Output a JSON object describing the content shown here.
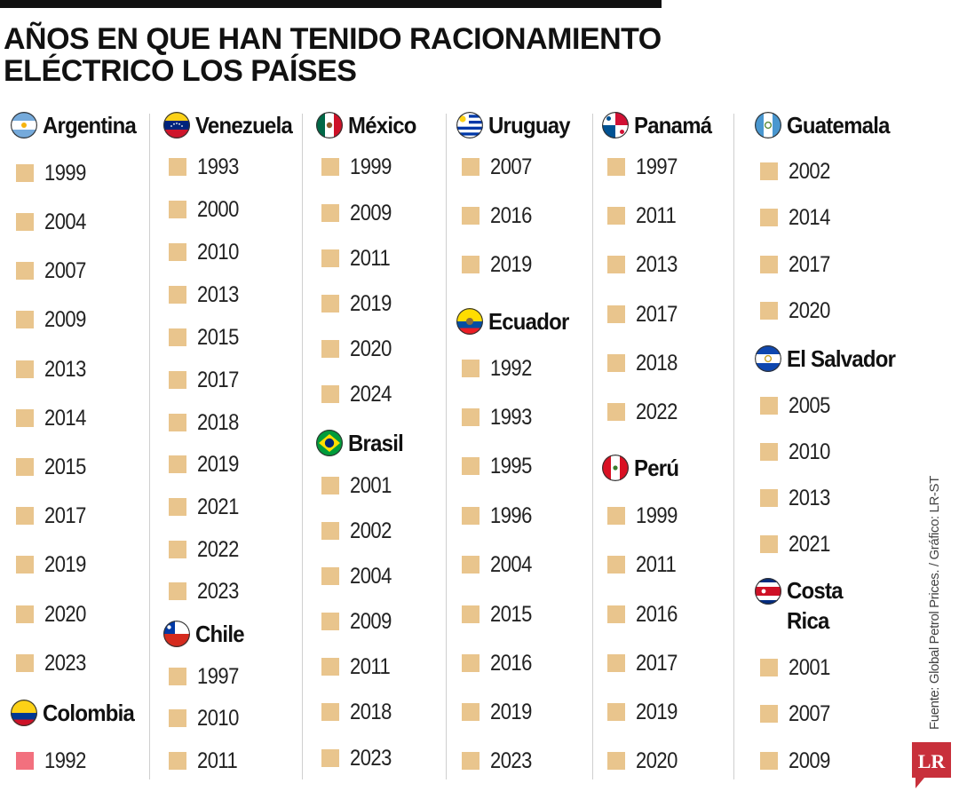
{
  "title": "AÑOS EN QUE HAN TENIDO RACIONAMIENTO ELÉCTRICO LOS PAÍSES",
  "source": "Fuente: Global Petrol Prices. / Gráfico: LR-ST",
  "logo_text": "LR",
  "colors": {
    "default_marker": "#e9c58d",
    "highlight_marker": "#f2707e",
    "logo": "#c8303b"
  },
  "columns": [
    {
      "groups": [
        {
          "country": "Argentina",
          "flag": "argentina-flag-icon",
          "years": [
            "1999",
            "2004",
            "2007",
            "2009",
            "2013",
            "2014",
            "2015",
            "2017",
            "2019",
            "2020",
            "2023"
          ]
        },
        {
          "country": "Colombia",
          "flag": "colombia-flag-icon",
          "highlight": true,
          "years": [
            "1992"
          ]
        }
      ]
    },
    {
      "groups": [
        {
          "country": "Venezuela",
          "flag": "venezuela-flag-icon",
          "years": [
            "1993",
            "2000",
            "2010",
            "2013",
            "2015",
            "2017",
            "2018",
            "2019",
            "2021",
            "2022",
            "2023"
          ]
        },
        {
          "country": "Chile",
          "flag": "chile-flag-icon",
          "years": [
            "1997",
            "2010",
            "2011"
          ]
        }
      ]
    },
    {
      "groups": [
        {
          "country": "México",
          "flag": "mexico-flag-icon",
          "years": [
            "1999",
            "2009",
            "2011",
            "2019",
            "2020",
            "2024"
          ]
        },
        {
          "country": "Brasil",
          "flag": "brazil-flag-icon",
          "years": [
            "2001",
            "2002",
            "2004",
            "2009",
            "2011",
            "2018",
            "2023"
          ]
        }
      ]
    },
    {
      "groups": [
        {
          "country": "Uruguay",
          "flag": "uruguay-flag-icon",
          "years": [
            "2007",
            "2016",
            "2019"
          ]
        },
        {
          "country": "Ecuador",
          "flag": "ecuador-flag-icon",
          "years": [
            "1992",
            "1993",
            "1995",
            "1996",
            "2004",
            "2015",
            "2016",
            "2019",
            "2023"
          ]
        }
      ]
    },
    {
      "groups": [
        {
          "country": "Panamá",
          "flag": "panama-flag-icon",
          "years": [
            "1997",
            "2011",
            "2013",
            "2017",
            "2018",
            "2022"
          ]
        },
        {
          "country": "Perú",
          "flag": "peru-flag-icon",
          "years": [
            "1999",
            "2011",
            "2016",
            "2017",
            "2019",
            "2020"
          ]
        }
      ]
    },
    {
      "groups": [
        {
          "country": "Guatemala",
          "flag": "guatemala-flag-icon",
          "years": [
            "2002",
            "2014",
            "2017",
            "2020"
          ]
        },
        {
          "country": "El Salvador",
          "flag": "el-salvador-flag-icon",
          "years": [
            "2005",
            "2010",
            "2013",
            "2021"
          ]
        },
        {
          "country": "Costa Rica",
          "flag": "costa-rica-flag-icon",
          "years": [
            "2001",
            "2007",
            "2009"
          ]
        }
      ]
    }
  ]
}
